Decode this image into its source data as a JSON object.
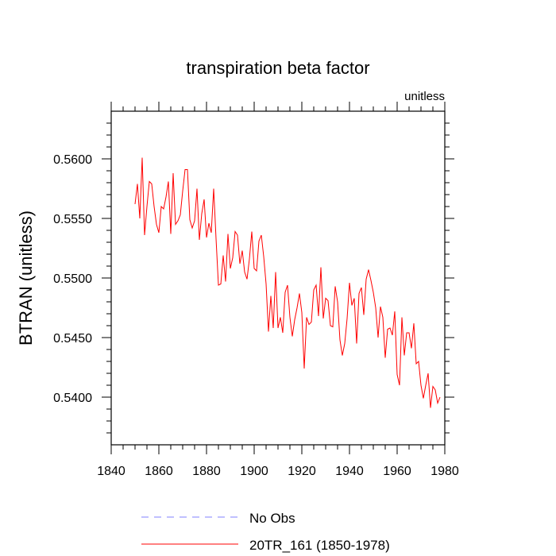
{
  "chart_data": {
    "type": "line",
    "title": "transpiration beta factor",
    "units_label": "unitless",
    "xlabel": "",
    "ylabel": "BTRAN  (unitless)",
    "xlim": [
      1840,
      1980
    ],
    "ylim": [
      0.536,
      0.564
    ],
    "x_ticks": [
      1840,
      1860,
      1880,
      1900,
      1920,
      1940,
      1960,
      1980
    ],
    "x_tick_labels": [
      "1840",
      "1860",
      "1880",
      "1900",
      "1920",
      "1940",
      "1960",
      "1980"
    ],
    "y_ticks": [
      0.54,
      0.545,
      0.55,
      0.555,
      0.56
    ],
    "y_tick_labels": [
      "0.5400",
      "0.5450",
      "0.5500",
      "0.5550",
      "0.5600"
    ],
    "grid": false,
    "legend": [
      {
        "label": "No Obs",
        "color": "#8080ff",
        "style": "dashed"
      },
      {
        "label": "20TR_161 (1850-1978)",
        "color": "#ff0000",
        "style": "solid"
      }
    ],
    "series": [
      {
        "name": "20TR_161 (1850-1978)",
        "color": "#ff0000",
        "x": [
          1850,
          1851,
          1852,
          1853,
          1854,
          1855,
          1856,
          1857,
          1858,
          1859,
          1860,
          1861,
          1862,
          1863,
          1864,
          1865,
          1866,
          1867,
          1868,
          1869,
          1870,
          1871,
          1872,
          1873,
          1874,
          1875,
          1876,
          1877,
          1878,
          1879,
          1880,
          1881,
          1882,
          1883,
          1884,
          1885,
          1886,
          1887,
          1888,
          1889,
          1890,
          1891,
          1892,
          1893,
          1894,
          1895,
          1896,
          1897,
          1898,
          1899,
          1900,
          1901,
          1902,
          1903,
          1904,
          1905,
          1906,
          1907,
          1908,
          1909,
          1910,
          1911,
          1912,
          1913,
          1914,
          1915,
          1916,
          1917,
          1918,
          1919,
          1920,
          1921,
          1922,
          1923,
          1924,
          1925,
          1926,
          1927,
          1928,
          1929,
          1930,
          1931,
          1932,
          1933,
          1934,
          1935,
          1936,
          1937,
          1938,
          1939,
          1940,
          1941,
          1942,
          1943,
          1944,
          1945,
          1946,
          1947,
          1948,
          1949,
          1950,
          1951,
          1952,
          1953,
          1954,
          1955,
          1956,
          1957,
          1958,
          1959,
          1960,
          1961,
          1962,
          1963,
          1964,
          1965,
          1966,
          1967,
          1968,
          1969,
          1970,
          1971,
          1972,
          1973,
          1974,
          1975,
          1976,
          1977,
          1978
        ],
        "y": [
          0.5562,
          0.5579,
          0.555,
          0.5601,
          0.5536,
          0.556,
          0.5581,
          0.5579,
          0.556,
          0.5545,
          0.5538,
          0.556,
          0.5558,
          0.5568,
          0.5581,
          0.5537,
          0.5588,
          0.5545,
          0.5548,
          0.5553,
          0.5573,
          0.5591,
          0.5591,
          0.5549,
          0.5542,
          0.5548,
          0.5575,
          0.5532,
          0.5554,
          0.5566,
          0.5534,
          0.5546,
          0.5538,
          0.5575,
          0.5533,
          0.5494,
          0.5495,
          0.5519,
          0.5497,
          0.5537,
          0.5508,
          0.5517,
          0.5539,
          0.5536,
          0.5512,
          0.5523,
          0.5505,
          0.5499,
          0.5516,
          0.5539,
          0.5508,
          0.5506,
          0.5531,
          0.5536,
          0.5518,
          0.5495,
          0.5455,
          0.5485,
          0.5458,
          0.5505,
          0.5458,
          0.5467,
          0.5454,
          0.5488,
          0.5494,
          0.5467,
          0.5451,
          0.5465,
          0.5475,
          0.5487,
          0.5471,
          0.5424,
          0.5467,
          0.5461,
          0.5463,
          0.549,
          0.5494,
          0.5468,
          0.5509,
          0.5466,
          0.5483,
          0.5481,
          0.546,
          0.5459,
          0.5493,
          0.548,
          0.5448,
          0.5435,
          0.5445,
          0.5466,
          0.5496,
          0.5477,
          0.5483,
          0.5445,
          0.5487,
          0.5492,
          0.5469,
          0.5499,
          0.5507,
          0.5498,
          0.5488,
          0.5475,
          0.545,
          0.5476,
          0.5467,
          0.5433,
          0.5457,
          0.5458,
          0.5452,
          0.5472,
          0.5419,
          0.541,
          0.5467,
          0.5435,
          0.5454,
          0.5454,
          0.5441,
          0.5462,
          0.5428,
          0.543,
          0.541,
          0.5399,
          0.541,
          0.542,
          0.5391,
          0.5409,
          0.5406,
          0.5395,
          0.54
        ]
      }
    ]
  }
}
